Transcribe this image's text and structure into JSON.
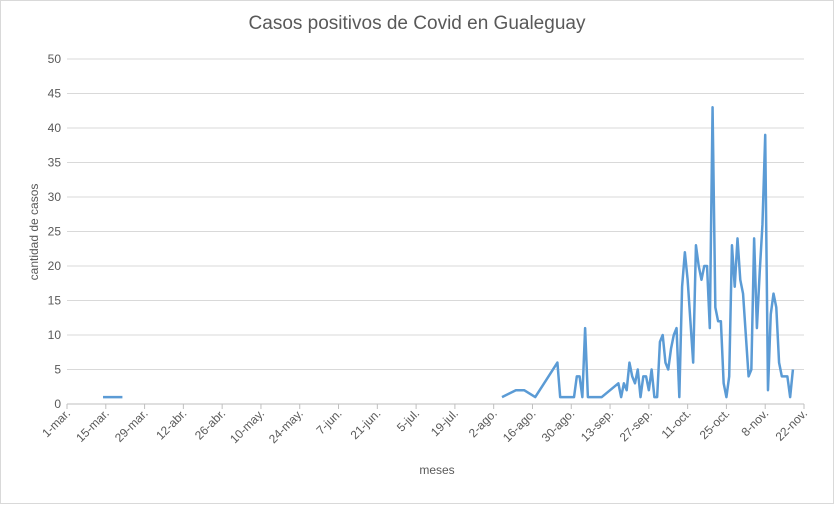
{
  "chart_data": {
    "type": "line",
    "title": "Casos positivos de Covid en Gualeguay",
    "x_label": "meses",
    "y_label": "cantidad de casos",
    "grid": true,
    "xlim": [
      0,
      266
    ],
    "ylim": [
      0,
      50
    ],
    "yticks": [
      0,
      5,
      10,
      15,
      20,
      25,
      30,
      35,
      40,
      45,
      50
    ],
    "xticks": [
      {
        "value": 0,
        "label": "1-mar."
      },
      {
        "value": 14,
        "label": "15-mar."
      },
      {
        "value": 28,
        "label": "29-mar."
      },
      {
        "value": 42,
        "label": "12-abr."
      },
      {
        "value": 56,
        "label": "26-abr."
      },
      {
        "value": 70,
        "label": "10-may."
      },
      {
        "value": 84,
        "label": "24-may."
      },
      {
        "value": 98,
        "label": "7-jun."
      },
      {
        "value": 112,
        "label": "21-jun."
      },
      {
        "value": 126,
        "label": "5-jul."
      },
      {
        "value": 140,
        "label": "19-jul."
      },
      {
        "value": 154,
        "label": "2-ago."
      },
      {
        "value": 168,
        "label": "16-ago."
      },
      {
        "value": 182,
        "label": "30-ago."
      },
      {
        "value": 196,
        "label": "13-sep."
      },
      {
        "value": 210,
        "label": "27-sep."
      },
      {
        "value": 224,
        "label": "11-oct."
      },
      {
        "value": 238,
        "label": "25-oct."
      },
      {
        "value": 252,
        "label": "8-nov."
      },
      {
        "value": 266,
        "label": "22-nov."
      }
    ],
    "x": [
      13,
      17,
      20,
      90,
      157,
      162,
      165,
      169,
      177,
      178,
      182,
      183,
      184,
      185,
      186,
      187,
      188,
      193,
      199,
      200,
      201,
      202,
      203,
      204,
      205,
      206,
      207,
      208,
      209,
      210,
      211,
      212,
      213,
      214,
      215,
      216,
      217,
      218,
      219,
      220,
      221,
      222,
      223,
      224,
      225,
      226,
      227,
      228,
      229,
      230,
      231,
      232,
      233,
      234,
      235,
      236,
      237,
      238,
      239,
      240,
      241,
      242,
      243,
      244,
      245,
      246,
      247,
      248,
      249,
      250,
      251,
      252,
      253,
      254,
      255,
      256,
      257,
      258,
      259,
      260,
      261,
      262
    ],
    "series": [
      {
        "name": "casos",
        "color": "#5b9bd5",
        "values": [
          1,
          1,
          1,
          null,
          1,
          2,
          2,
          1,
          6,
          1,
          1,
          1,
          4,
          4,
          1,
          11,
          1,
          1,
          3,
          1,
          3,
          2,
          6,
          4,
          3,
          5,
          1,
          4,
          4,
          2,
          5,
          1,
          1,
          9,
          10,
          6,
          5,
          8,
          10,
          11,
          1,
          17,
          22,
          18,
          12,
          6,
          23,
          20,
          18,
          20,
          20,
          11,
          43,
          14,
          12,
          12,
          3,
          1,
          4,
          23,
          17,
          24,
          18,
          16,
          10,
          4,
          5,
          24,
          11,
          19,
          26,
          39,
          2,
          13,
          16,
          14,
          6,
          4,
          4,
          4,
          1,
          5
        ]
      }
    ]
  }
}
